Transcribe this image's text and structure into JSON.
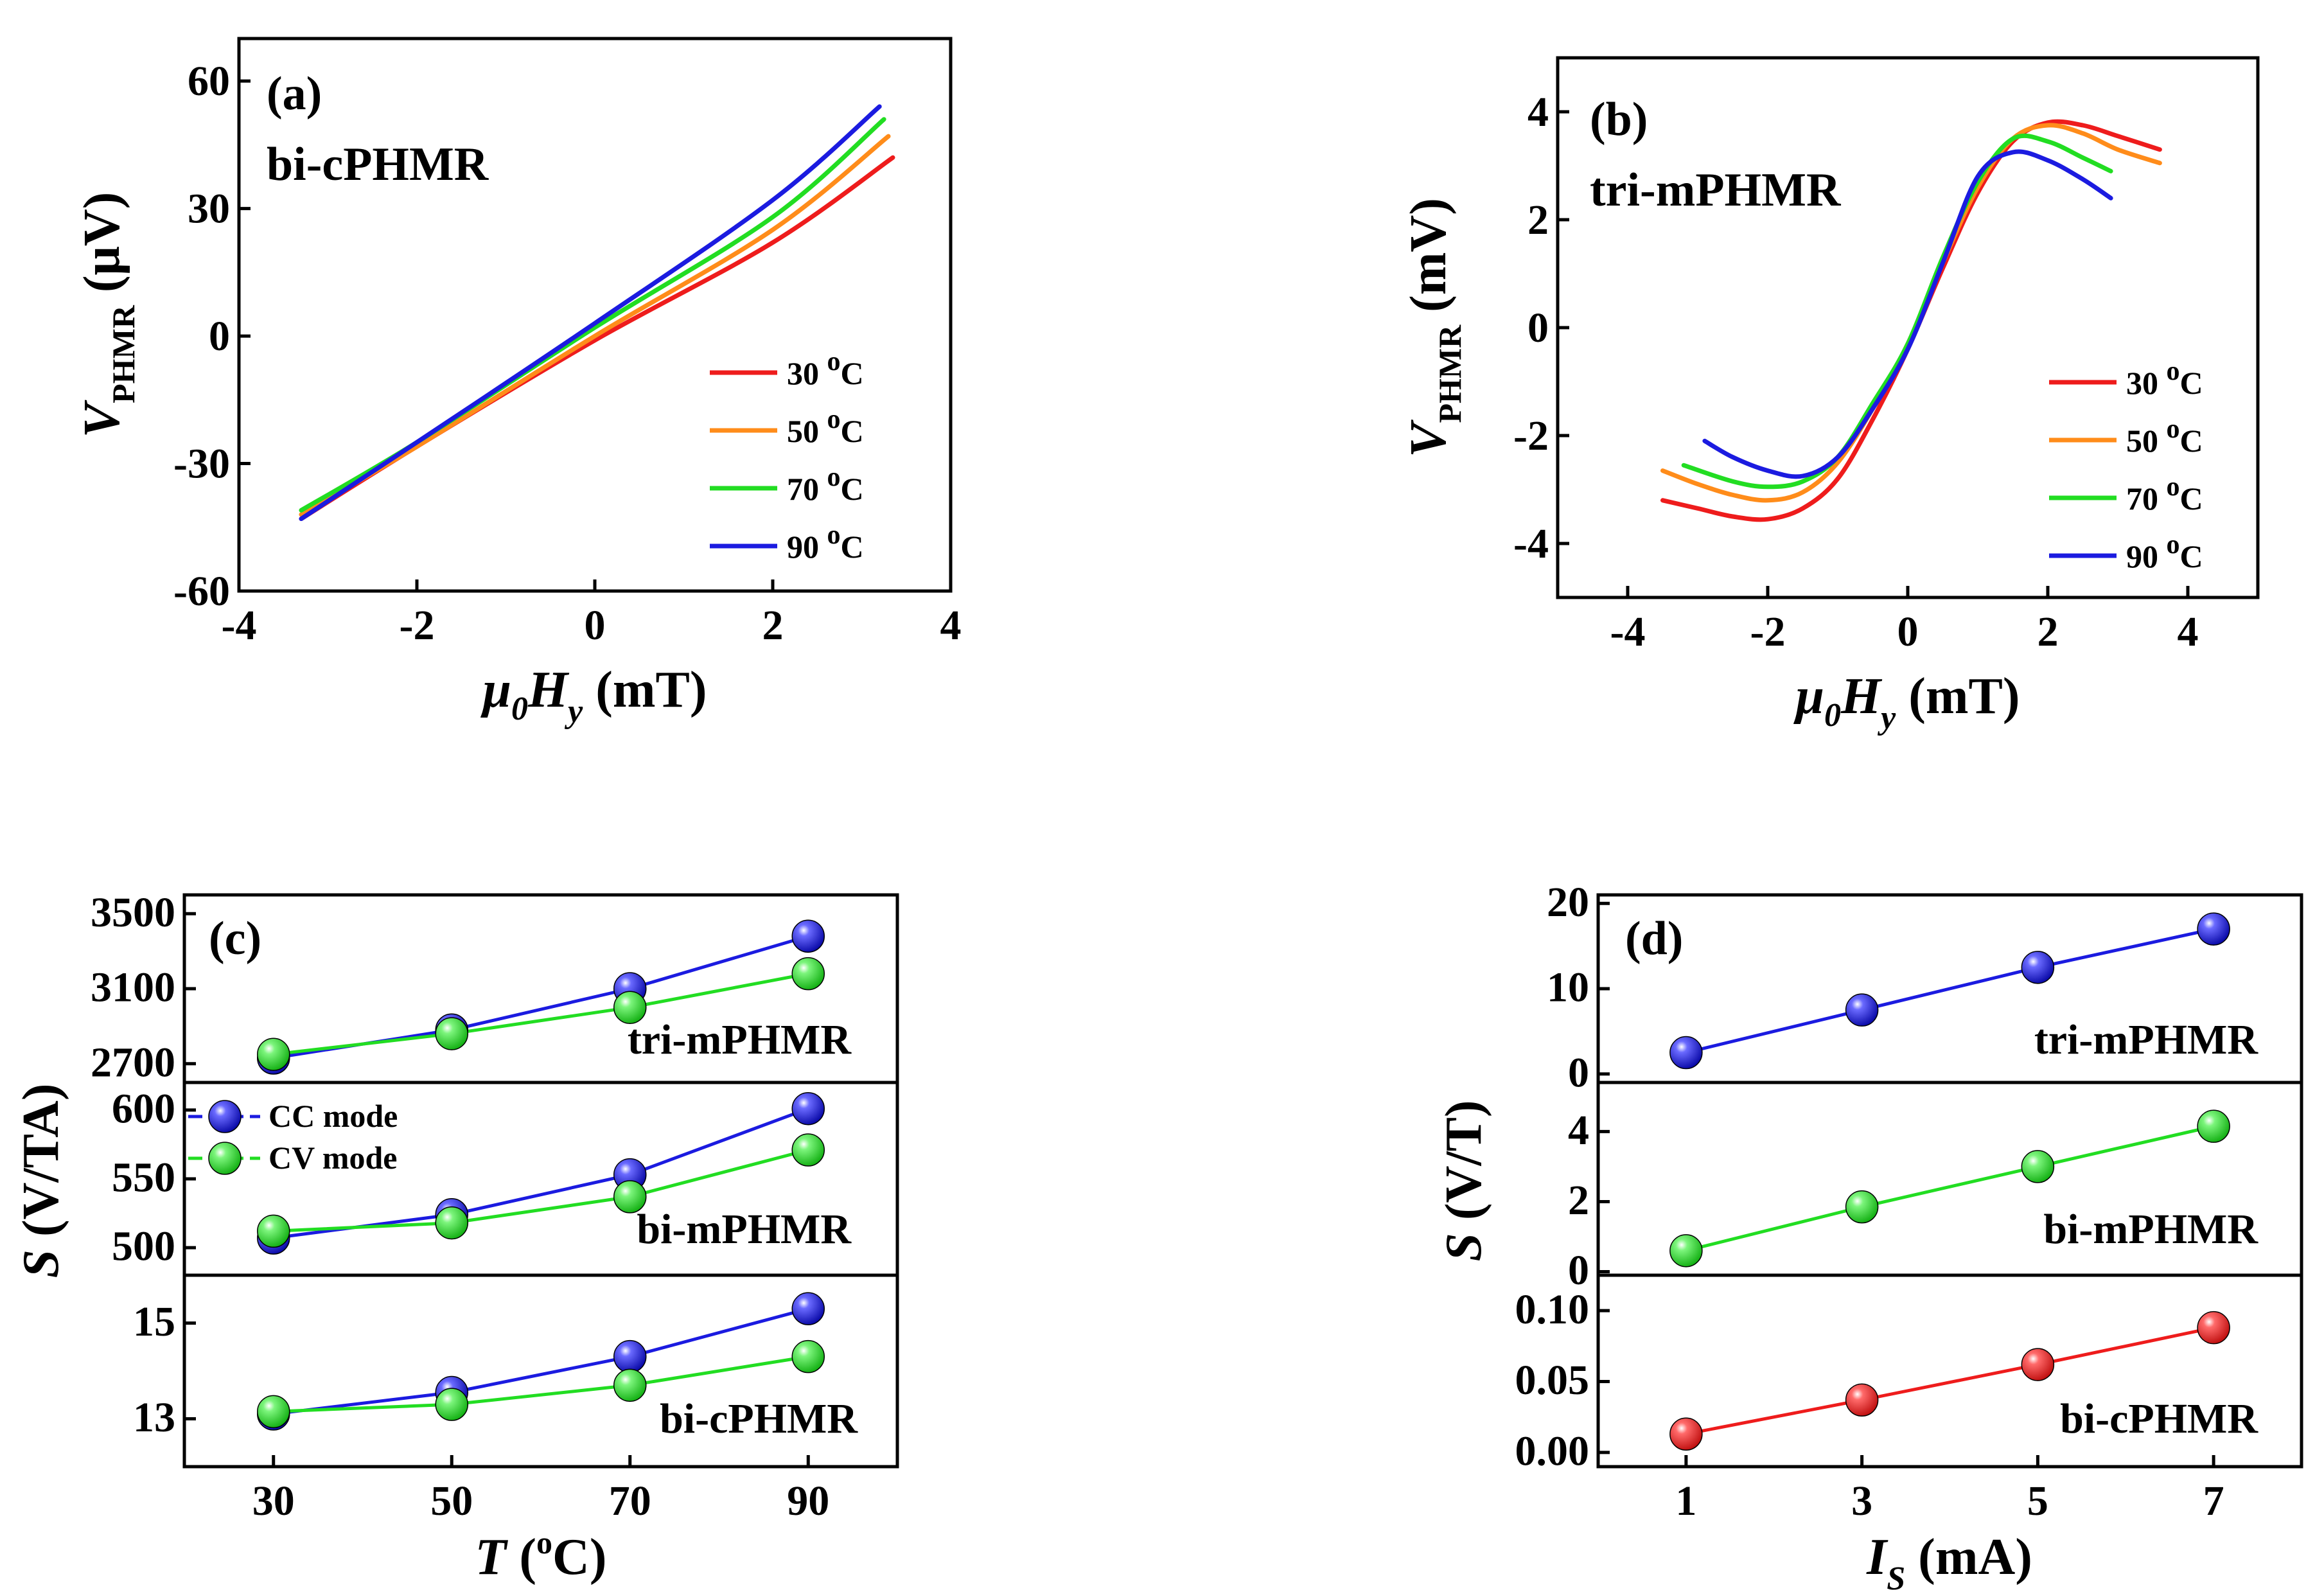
{
  "colors": {
    "c30": "#ee1c1c",
    "c50": "#ff8c1a",
    "c70": "#22dd22",
    "c90": "#1b1be0",
    "red": "#ee1c1c",
    "green": "#22dd22",
    "blue": "#1b1be0"
  },
  "chart_data": [
    {
      "id": "a",
      "type": "line",
      "panel_label": "(a)",
      "title": "bi-cPHMR",
      "xlabel": {
        "main": "μ",
        "sub0": "0",
        "H": "H",
        "suby": "y",
        "unit": " (mT)"
      },
      "ylabel": {
        "main": "V",
        "sub": "PHMR",
        "unit": " (μV)"
      },
      "xlim": [
        -4,
        4
      ],
      "ylim": [
        -60,
        70
      ],
      "xticks": [
        -4,
        -2,
        0,
        2,
        4
      ],
      "xticklabels": [
        "-4",
        "-2",
        "0",
        "2",
        "4"
      ],
      "yticks": [
        -60,
        -30,
        0,
        30,
        60
      ],
      "yticklabels": [
        "-60",
        "-30",
        "0",
        "30",
        "60"
      ],
      "legend": {
        "position": "lower-right",
        "entries": [
          "30",
          "50",
          "70",
          "90"
        ],
        "unit_sup": "o",
        "unit": "C"
      },
      "series": [
        {
          "name": "30 °C",
          "color": "c30",
          "points": [
            [
              -3.3,
              -43
            ],
            [
              -2,
              -26
            ],
            [
              0,
              -1
            ],
            [
              2,
              22
            ],
            [
              3.35,
              42
            ]
          ]
        },
        {
          "name": "50 °C",
          "color": "c50",
          "points": [
            [
              -3.3,
              -42
            ],
            [
              -2,
              -26
            ],
            [
              0,
              0
            ],
            [
              2,
              25
            ],
            [
              3.3,
              47
            ]
          ]
        },
        {
          "name": "70 °C",
          "color": "c70",
          "points": [
            [
              -3.3,
              -41
            ],
            [
              -2,
              -25
            ],
            [
              0,
              2
            ],
            [
              2,
              28
            ],
            [
              3.25,
              51
            ]
          ]
        },
        {
          "name": "90 °C",
          "color": "c90",
          "points": [
            [
              -3.3,
              -43
            ],
            [
              -2,
              -25
            ],
            [
              0,
              3
            ],
            [
              2,
              32
            ],
            [
              3.2,
              54
            ]
          ]
        }
      ]
    },
    {
      "id": "b",
      "type": "line",
      "panel_label": "(b)",
      "title": "tri-mPHMR",
      "xlabel": {
        "main": "μ",
        "sub0": "0",
        "H": "H",
        "suby": "y",
        "unit": " (mT)"
      },
      "ylabel": {
        "main": "V",
        "sub": "PHMR",
        "unit": " (mV)"
      },
      "xlim": [
        -5,
        5
      ],
      "ylim": [
        -5,
        5
      ],
      "xticks": [
        -4,
        -2,
        0,
        2,
        4
      ],
      "xticklabels": [
        "-4",
        "-2",
        "0",
        "2",
        "4"
      ],
      "yticks": [
        -4,
        -2,
        0,
        2,
        4
      ],
      "yticklabels": [
        "-4",
        "-2",
        "0",
        "2",
        "4"
      ],
      "legend": {
        "position": "lower-right",
        "entries": [
          "30",
          "50",
          "70",
          "90"
        ],
        "unit_sup": "o",
        "unit": "C"
      },
      "series": [
        {
          "name": "30 °C",
          "color": "c30",
          "points": [
            [
              -3.5,
              -3.2
            ],
            [
              -3,
              -3.35
            ],
            [
              -2.5,
              -3.5
            ],
            [
              -2,
              -3.55
            ],
            [
              -1.5,
              -3.35
            ],
            [
              -1,
              -2.8
            ],
            [
              -0.5,
              -1.7
            ],
            [
              0,
              -0.4
            ],
            [
              0.5,
              1.1
            ],
            [
              1,
              2.5
            ],
            [
              1.5,
              3.45
            ],
            [
              2,
              3.8
            ],
            [
              2.5,
              3.75
            ],
            [
              3,
              3.55
            ],
            [
              3.6,
              3.3
            ]
          ]
        },
        {
          "name": "50 °C",
          "color": "c50",
          "points": [
            [
              -3.5,
              -2.65
            ],
            [
              -3,
              -2.9
            ],
            [
              -2.5,
              -3.1
            ],
            [
              -2,
              -3.2
            ],
            [
              -1.5,
              -3.05
            ],
            [
              -1,
              -2.5
            ],
            [
              -0.5,
              -1.5
            ],
            [
              0,
              -0.3
            ],
            [
              0.5,
              1.2
            ],
            [
              1,
              2.6
            ],
            [
              1.5,
              3.5
            ],
            [
              2,
              3.75
            ],
            [
              2.5,
              3.6
            ],
            [
              3,
              3.3
            ],
            [
              3.6,
              3.05
            ]
          ]
        },
        {
          "name": "70 °C",
          "color": "c70",
          "points": [
            [
              -3.2,
              -2.55
            ],
            [
              -2.5,
              -2.85
            ],
            [
              -2,
              -2.95
            ],
            [
              -1.5,
              -2.85
            ],
            [
              -1,
              -2.4
            ],
            [
              -0.5,
              -1.4
            ],
            [
              0,
              -0.3
            ],
            [
              0.5,
              1.3
            ],
            [
              1,
              2.7
            ],
            [
              1.5,
              3.5
            ],
            [
              2,
              3.45
            ],
            [
              2.5,
              3.15
            ],
            [
              2.9,
              2.9
            ]
          ]
        },
        {
          "name": "90 °C",
          "color": "c90",
          "points": [
            [
              -2.9,
              -2.1
            ],
            [
              -2.5,
              -2.4
            ],
            [
              -2,
              -2.65
            ],
            [
              -1.5,
              -2.75
            ],
            [
              -1,
              -2.4
            ],
            [
              -0.5,
              -1.5
            ],
            [
              0,
              -0.4
            ],
            [
              0.5,
              1.2
            ],
            [
              1,
              2.8
            ],
            [
              1.5,
              3.25
            ],
            [
              2,
              3.1
            ],
            [
              2.5,
              2.75
            ],
            [
              2.9,
              2.4
            ]
          ]
        }
      ]
    },
    {
      "id": "c",
      "type": "scatter-line",
      "panel_label": "(c)",
      "xlabel": {
        "main": "T",
        "open": " (",
        "sup": "o",
        "unit": "C)"
      },
      "ylabel": {
        "main": "S",
        "unit": " (V/TA)"
      },
      "xlim": [
        20,
        100
      ],
      "xticks": [
        30,
        50,
        70,
        90
      ],
      "xticklabels": [
        "30",
        "50",
        "70",
        "90"
      ],
      "legend": {
        "position": "top-left of middle subplot",
        "entries": [
          {
            "name": "CC mode",
            "color": "blue"
          },
          {
            "name": "CV mode",
            "color": "green"
          }
        ]
      },
      "subplots": [
        {
          "label": "tri-mPHMR",
          "ylim": [
            2600,
            3600
          ],
          "yticks": [
            2700,
            3100,
            3500
          ],
          "yticklabels": [
            "2700",
            "3100",
            "3500"
          ],
          "series": [
            {
              "name": "CC mode",
              "color": "blue",
              "x": [
                30,
                50,
                70,
                90
              ],
              "y": [
                2730,
                2880,
                3100,
                3380
              ]
            },
            {
              "name": "CV mode",
              "color": "green",
              "x": [
                30,
                50,
                70,
                90
              ],
              "y": [
                2750,
                2860,
                3000,
                3180
              ]
            }
          ]
        },
        {
          "label": "bi-mPHMR",
          "ylim": [
            480,
            620
          ],
          "yticks": [
            500,
            550,
            600
          ],
          "yticklabels": [
            "500",
            "550",
            "600"
          ],
          "series": [
            {
              "name": "CC mode",
              "color": "blue",
              "x": [
                30,
                50,
                70,
                90
              ],
              "y": [
                507,
                524,
                553,
                601
              ]
            },
            {
              "name": "CV mode",
              "color": "green",
              "x": [
                30,
                50,
                70,
                90
              ],
              "y": [
                512,
                518,
                537,
                571
              ]
            }
          ]
        },
        {
          "label": "bi-cPHMR",
          "ylim": [
            12.0,
            16.0
          ],
          "yticks": [
            13,
            15
          ],
          "yticklabels": [
            "13",
            "15"
          ],
          "series": [
            {
              "name": "CC mode",
              "color": "blue",
              "x": [
                30,
                50,
                70,
                90
              ],
              "y": [
                13.1,
                13.55,
                14.3,
                15.3
              ]
            },
            {
              "name": "CV mode",
              "color": "green",
              "x": [
                30,
                50,
                70,
                90
              ],
              "y": [
                13.15,
                13.3,
                13.7,
                14.3
              ]
            }
          ]
        }
      ]
    },
    {
      "id": "d",
      "type": "scatter-line",
      "panel_label": "(d)",
      "xlabel": {
        "main": "I",
        "sub": "S",
        "unit": " (mA)"
      },
      "ylabel": {
        "main": "S",
        "unit": " (V/T)"
      },
      "xlim": [
        0,
        8
      ],
      "xticks": [
        1,
        3,
        5,
        7
      ],
      "xticklabels": [
        "1",
        "3",
        "5",
        "7"
      ],
      "subplots": [
        {
          "label": "tri-mPHMR",
          "ylim": [
            -1,
            21
          ],
          "yticks": [
            0,
            10,
            20
          ],
          "yticklabels": [
            "0",
            "10",
            "20"
          ],
          "series": [
            {
              "name": "tri-mPHMR",
              "color": "blue",
              "x": [
                1,
                3,
                5,
                7
              ],
              "y": [
                2.5,
                7.5,
                12.5,
                17
              ]
            }
          ]
        },
        {
          "label": "bi-mPHMR",
          "ylim": [
            -0.1,
            5.4
          ],
          "yticks": [
            0,
            2,
            4
          ],
          "yticklabels": [
            "0",
            "2",
            "4"
          ],
          "series": [
            {
              "name": "bi-mPHMR",
              "color": "green",
              "x": [
                1,
                3,
                5,
                7
              ],
              "y": [
                0.6,
                1.85,
                3.0,
                4.15
              ]
            }
          ]
        },
        {
          "label": "bi-cPHMR",
          "ylim": [
            -0.01,
            0.125
          ],
          "yticks": [
            0.0,
            0.05,
            0.1
          ],
          "yticklabels": [
            "0.00",
            "0.05",
            "0.10"
          ],
          "series": [
            {
              "name": "bi-cPHMR",
              "color": "red",
              "x": [
                1,
                3,
                5,
                7
              ],
              "y": [
                0.013,
                0.037,
                0.062,
                0.088
              ]
            }
          ]
        }
      ]
    }
  ]
}
